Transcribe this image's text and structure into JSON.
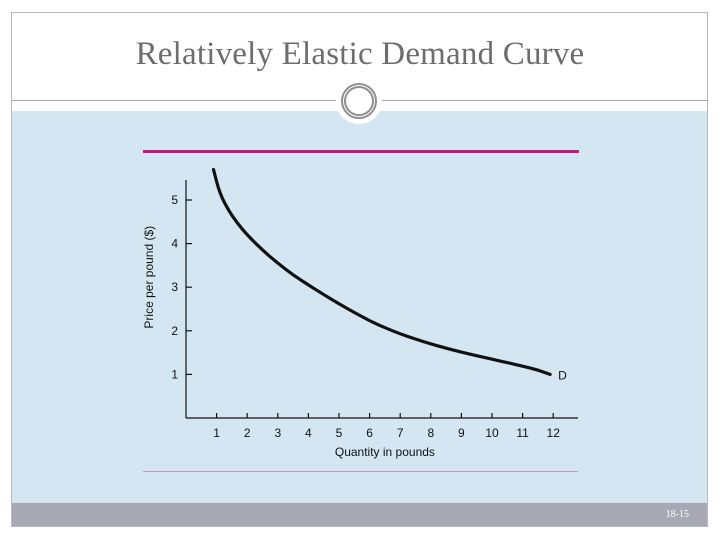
{
  "slide": {
    "title": "Relatively Elastic Demand Curve",
    "slide_number": "18-15"
  },
  "colors": {
    "content_background": "#d4e6f2",
    "accent_line": "#d0127a",
    "footer_bar": "#a9a9b6"
  },
  "chart_data": {
    "type": "line",
    "title": "",
    "xlabel": "Quantity in pounds",
    "ylabel": "Price per pound ($)",
    "x_ticks": [
      1,
      2,
      3,
      4,
      5,
      6,
      7,
      8,
      9,
      10,
      11,
      12
    ],
    "y_ticks": [
      1,
      2,
      3,
      4,
      5
    ],
    "xlim": [
      0,
      12.2
    ],
    "ylim": [
      0,
      5.6
    ],
    "grid": false,
    "series": [
      {
        "name": "D",
        "x": [
          0.9,
          1.1,
          1.4,
          1.7,
          2.0,
          2.5,
          3.0,
          3.5,
          4.0,
          4.5,
          5.0,
          5.5,
          6.0,
          6.5,
          7.0,
          7.5,
          8.0,
          8.5,
          9.0,
          9.5,
          10.0,
          10.5,
          11.0,
          11.5,
          11.9
        ],
        "y": [
          5.7,
          5.15,
          4.75,
          4.45,
          4.2,
          3.85,
          3.55,
          3.28,
          3.05,
          2.83,
          2.62,
          2.42,
          2.23,
          2.07,
          1.93,
          1.81,
          1.7,
          1.6,
          1.51,
          1.43,
          1.35,
          1.27,
          1.19,
          1.1,
          1.0
        ]
      }
    ]
  }
}
